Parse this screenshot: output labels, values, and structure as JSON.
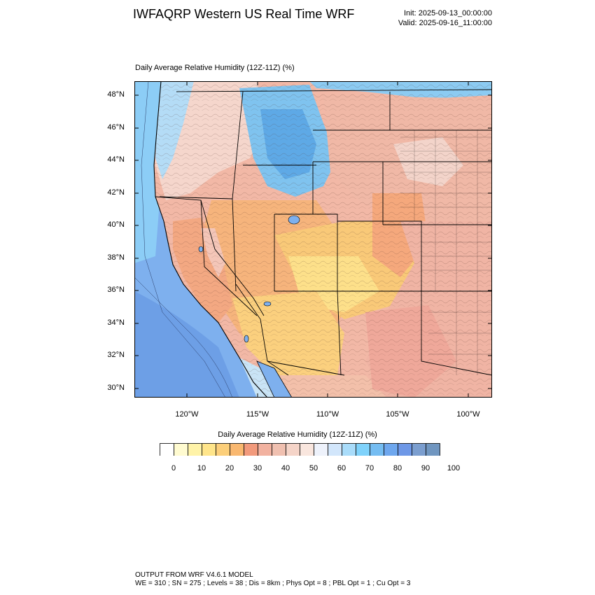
{
  "header": {
    "title": "IWFAQRP Western US Real Time WRF",
    "init": "Init: 2025-09-13_00:00:00",
    "valid": "Valid: 2025-09-16_11:00:00"
  },
  "map": {
    "field_title": "Daily Average Relative Humidity (12Z-11Z)   (%)",
    "lat_labels": [
      "48°N",
      "46°N",
      "44°N",
      "42°N",
      "40°N",
      "38°N",
      "36°N",
      "34°N",
      "32°N",
      "30°N"
    ],
    "lon_labels": [
      "120°W",
      "115°W",
      "110°W",
      "105°W",
      "100°W"
    ]
  },
  "colorbar": {
    "title": "Daily Average Relative Humidity (12Z-11Z)  (%)",
    "colors": [
      "#ffffff",
      "#fffbd0",
      "#fff3a8",
      "#ffe58a",
      "#fccf7a",
      "#f9b870",
      "#f29a7c",
      "#f2b2a0",
      "#f0c0b0",
      "#f5d4c8",
      "#f9e6de",
      "#eef2fb",
      "#d2e6fb",
      "#a9dcfa",
      "#7fd2fb",
      "#75bdf2",
      "#6ea7ee",
      "#6e98e7",
      "#7b9ecf",
      "#7096c0"
    ],
    "labels": [
      "0",
      "10",
      "20",
      "30",
      "40",
      "50",
      "60",
      "70",
      "80",
      "90",
      "100"
    ]
  },
  "footer": {
    "line1": "OUTPUT FROM WRF V4.6.1 MODEL",
    "line2": "WE = 310 ; SN = 275 ; Levels = 38 ; Dis = 8km ; Phys Opt = 8 ; PBL Opt = 1 ; Cu Opt = 3"
  }
}
